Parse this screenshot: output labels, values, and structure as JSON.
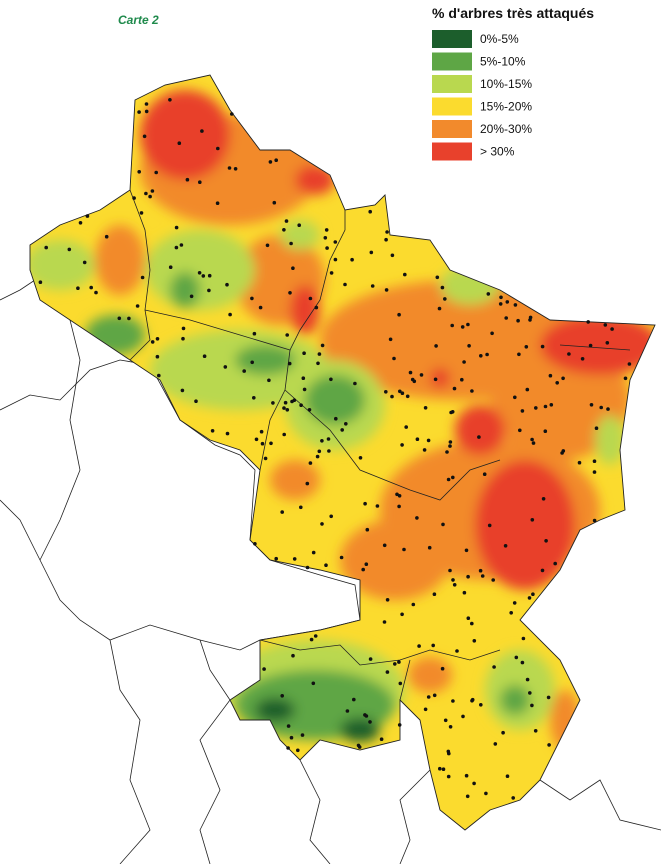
{
  "map": {
    "label": "Carte 2",
    "legend": {
      "title": "% d'arbres très attaqués",
      "items": [
        {
          "label": "0%-5%",
          "color": "#1c5e2c"
        },
        {
          "label": "5%-10%",
          "color": "#5ea645"
        },
        {
          "label": "10%-15%",
          "color": "#b9d84f"
        },
        {
          "label": "15%-20%",
          "color": "#fbdb2e"
        },
        {
          "label": "20%-30%",
          "color": "#f28a2c"
        },
        {
          "label": "> 30%",
          "color": "#e8412c"
        }
      ]
    }
  }
}
